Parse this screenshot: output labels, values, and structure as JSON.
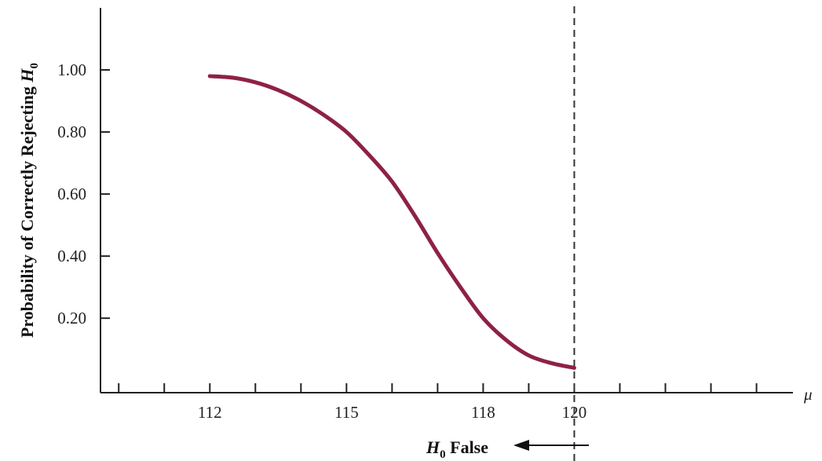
{
  "chart_data": {
    "type": "line",
    "ylabel_prefix": "Probability of Correctly Rejecting ",
    "ylabel_var": "H",
    "ylabel_sub": "0",
    "xlabel": "μ",
    "x_ticks": [
      112,
      115,
      118,
      120
    ],
    "x_tick_labels": [
      "112",
      "115",
      "118",
      "120"
    ],
    "y_ticks": [
      0.2,
      0.4,
      0.6,
      0.8,
      1.0
    ],
    "y_tick_labels": [
      "0.20",
      "0.40",
      "0.60",
      "0.80",
      "1.00"
    ],
    "xlim": [
      109.6,
      124.8
    ],
    "ylim": [
      -0.04,
      1.2
    ],
    "series": [
      {
        "color": "#8e2145",
        "x": [
          112,
          112.5,
          113,
          113.5,
          114,
          114.5,
          115,
          115.5,
          116,
          116.5,
          117,
          117.5,
          118,
          118.5,
          119,
          119.5,
          120
        ],
        "y": [
          0.98,
          0.975,
          0.96,
          0.935,
          0.9,
          0.855,
          0.8,
          0.725,
          0.64,
          0.53,
          0.41,
          0.3,
          0.2,
          0.13,
          0.08,
          0.055,
          0.04
        ]
      }
    ],
    "reference_line": {
      "x": 120,
      "style": "dashed"
    },
    "annotation": {
      "var": "H",
      "sub": "0",
      "text": " False",
      "arrow": "left"
    },
    "grid": false
  }
}
